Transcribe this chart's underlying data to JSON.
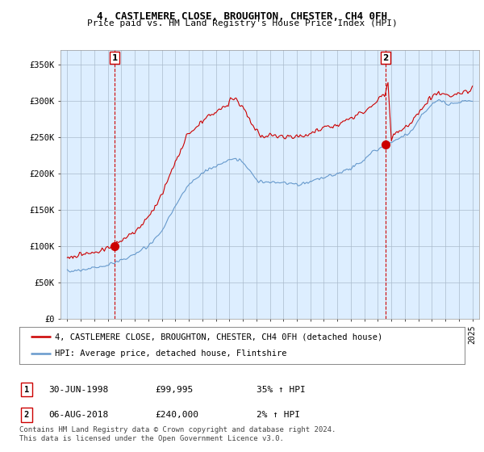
{
  "title1": "4, CASTLEMERE CLOSE, BROUGHTON, CHESTER, CH4 0FH",
  "title2": "Price paid vs. HM Land Registry's House Price Index (HPI)",
  "ylabel_ticks": [
    "£0",
    "£50K",
    "£100K",
    "£150K",
    "£200K",
    "£250K",
    "£300K",
    "£350K"
  ],
  "ytick_values": [
    0,
    50000,
    100000,
    150000,
    200000,
    250000,
    300000,
    350000
  ],
  "ylim": [
    0,
    370000
  ],
  "legend_line1": "4, CASTLEMERE CLOSE, BROUGHTON, CHESTER, CH4 0FH (detached house)",
  "legend_line2": "HPI: Average price, detached house, Flintshire",
  "sale1_label": "1",
  "sale1_date": "30-JUN-1998",
  "sale1_price": "£99,995",
  "sale1_hpi": "35% ↑ HPI",
  "sale2_label": "2",
  "sale2_date": "06-AUG-2018",
  "sale2_price": "£240,000",
  "sale2_hpi": "2% ↑ HPI",
  "footnote": "Contains HM Land Registry data © Crown copyright and database right 2024.\nThis data is licensed under the Open Government Licence v3.0.",
  "red_color": "#cc0000",
  "blue_color": "#6699cc",
  "plot_bg_color": "#ddeeff",
  "background_color": "#ffffff",
  "grid_color": "#aabbcc",
  "sale1_x": 1998.5,
  "sale1_y": 99995,
  "sale2_x": 2018.58,
  "sale2_y": 240000,
  "xlim_left": 1994.5,
  "xlim_right": 2025.5
}
